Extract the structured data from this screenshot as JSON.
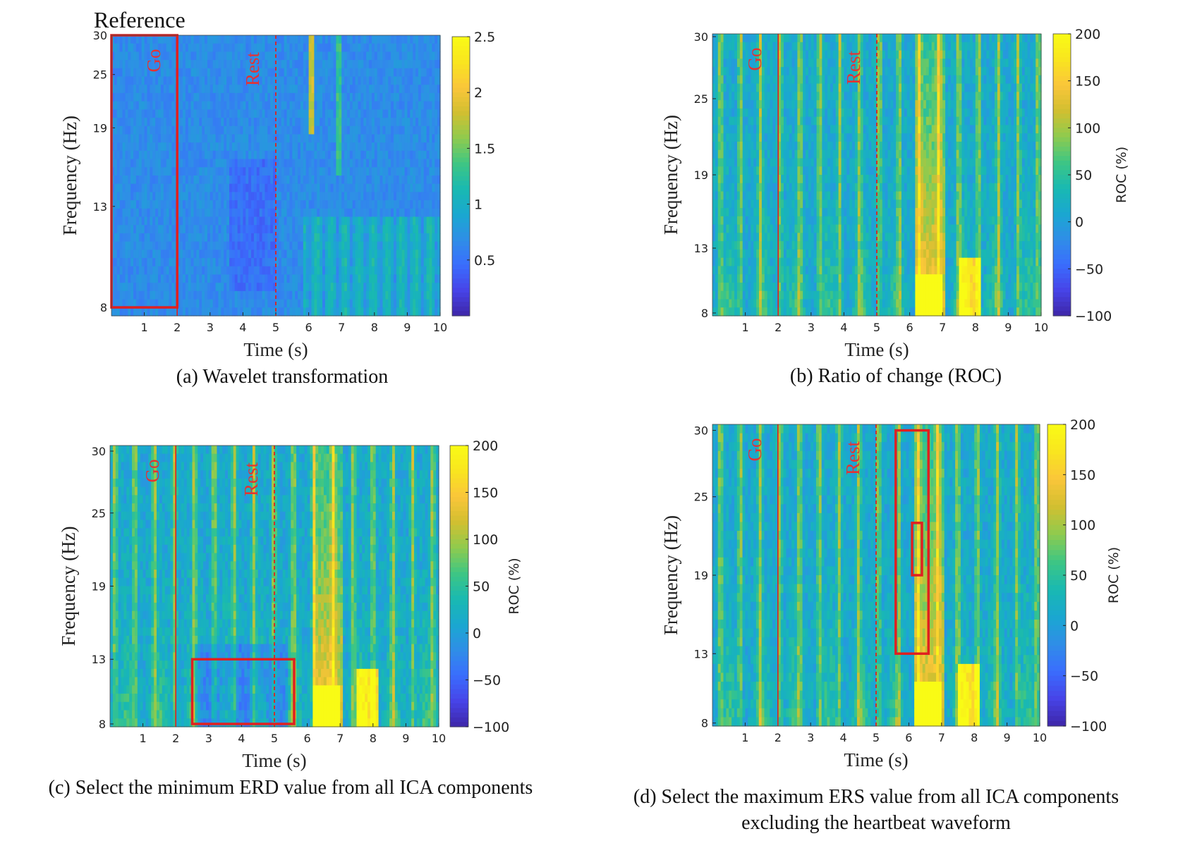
{
  "figure_label": "Reference",
  "colors": {
    "annotation_red": "#e02020",
    "colormap": [
      "#3e26a8",
      "#4744e8",
      "#3a6dfd",
      "#2f8ee7",
      "#1aa8d0",
      "#19b9b1",
      "#3fc683",
      "#8fcb4e",
      "#d2bf30",
      "#fac63a",
      "#f9e51f",
      "#f9fb15"
    ]
  },
  "chart_data": [
    {
      "id": "a",
      "type": "heatmap",
      "caption": "(a) Wavelet transformation",
      "xlabel": "Time (s)",
      "ylabel": "Frequency (Hz)",
      "xlim": [
        0,
        10
      ],
      "x_ticks": [
        "1",
        "2",
        "3",
        "4",
        "5",
        "6",
        "7",
        "8",
        "9",
        "10"
      ],
      "y_ticks": [
        "30",
        "25",
        "19",
        "13",
        "8"
      ],
      "colorbar": {
        "label": "",
        "range": [
          0,
          2.5
        ],
        "ticks": [
          "2.5",
          "2",
          "1.5",
          "1",
          "0.5"
        ]
      },
      "go_label": "Go",
      "rest_label": "Rest",
      "go_time": 2,
      "rest_time": 5,
      "boxes": [
        {
          "t0": 0,
          "t1": 2,
          "f0": 8,
          "f1": 30
        }
      ]
    },
    {
      "id": "b",
      "type": "heatmap",
      "caption": "(b) Ratio of change (ROC)",
      "xlabel": "Time (s)",
      "ylabel": "Frequency (Hz)",
      "xlim": [
        0,
        10
      ],
      "x_ticks": [
        "1",
        "2",
        "3",
        "4",
        "5",
        "6",
        "7",
        "8",
        "9",
        "10"
      ],
      "y_ticks": [
        "30",
        "25",
        "19",
        "13",
        "8"
      ],
      "colorbar": {
        "label": "ROC (%)",
        "range": [
          -100,
          200
        ],
        "ticks": [
          "200",
          "150",
          "100",
          "50",
          "0",
          "−50",
          "−100"
        ]
      },
      "go_label": "Go",
      "rest_label": "Rest",
      "go_time": 2,
      "rest_time": 5,
      "boxes": []
    },
    {
      "id": "c",
      "type": "heatmap",
      "caption": "(c) Select the minimum ERD value from all ICA components",
      "xlabel": "Time (s)",
      "ylabel": "Frequency (Hz)",
      "xlim": [
        0,
        10
      ],
      "x_ticks": [
        "1",
        "2",
        "3",
        "4",
        "5",
        "6",
        "7",
        "8",
        "9",
        "10"
      ],
      "y_ticks": [
        "30",
        "25",
        "19",
        "13",
        "8"
      ],
      "colorbar": {
        "label": "ROC (%)",
        "range": [
          -100,
          200
        ],
        "ticks": [
          "200",
          "150",
          "100",
          "50",
          "0",
          "−50",
          "−100"
        ]
      },
      "go_label": "Go",
      "rest_label": "Rest",
      "go_time": 2,
      "rest_time": 5,
      "boxes": [
        {
          "t0": 2.5,
          "t1": 5.6,
          "f0": 8,
          "f1": 13
        }
      ]
    },
    {
      "id": "d",
      "type": "heatmap",
      "caption": "(d) Select the maximum ERS value from all ICA components",
      "caption_line2": "excluding the heartbeat waveform",
      "xlabel": "Time (s)",
      "ylabel": "Frequency (Hz)",
      "xlim": [
        0,
        10
      ],
      "x_ticks": [
        "1",
        "2",
        "3",
        "4",
        "5",
        "6",
        "7",
        "8",
        "9",
        "10"
      ],
      "y_ticks": [
        "30",
        "25",
        "19",
        "13",
        "8"
      ],
      "colorbar": {
        "label": "ROC (%)",
        "range": [
          -100,
          200
        ],
        "ticks": [
          "200",
          "150",
          "100",
          "50",
          "0",
          "−50",
          "−100"
        ]
      },
      "go_label": "Go",
      "rest_label": "Rest",
      "go_time": 2,
      "rest_time": 5,
      "boxes": [
        {
          "t0": 5.6,
          "t1": 6.6,
          "f0": 13,
          "f1": 30
        },
        {
          "t0": 6.1,
          "t1": 6.4,
          "f0": 19,
          "f1": 23
        }
      ]
    }
  ]
}
